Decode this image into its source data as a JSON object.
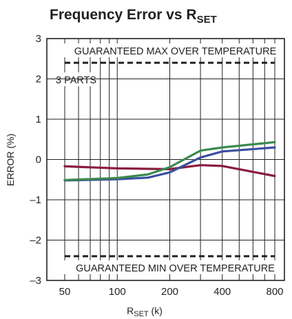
{
  "chart_data": {
    "type": "line",
    "title": "Frequency Error vs R",
    "title_subscript": "SET",
    "xlabel": "R",
    "xlabel_subscript": "SET",
    "xlabel_suffix": " (k)",
    "ylabel": "ERROR (%)",
    "x_scale": "log",
    "xlim": [
      50,
      800
    ],
    "ylim": [
      -3,
      3
    ],
    "x_ticks": [
      {
        "value": 50,
        "label": "50"
      },
      {
        "value": 100,
        "label": "100"
      },
      {
        "value": 200,
        "label": "200"
      },
      {
        "value": 400,
        "label": "400"
      },
      {
        "value": 800,
        "label": "800"
      }
    ],
    "y_ticks": [
      {
        "value": 3,
        "label": "3"
      },
      {
        "value": 2,
        "label": "2"
      },
      {
        "value": 1,
        "label": "1"
      },
      {
        "value": 0,
        "label": "0"
      },
      {
        "value": -1,
        "label": "–1"
      },
      {
        "value": -2,
        "label": "–2"
      },
      {
        "value": -3,
        "label": "–3"
      }
    ],
    "grid_x": [
      50,
      60,
      70,
      80,
      90,
      100,
      200,
      300,
      400,
      500,
      600,
      700,
      800
    ],
    "grid": true,
    "series": [
      {
        "color": "#8b1a3e",
        "x": [
          50,
          100,
          200,
          300,
          400,
          800
        ],
        "y": [
          -0.17,
          -0.22,
          -0.24,
          -0.14,
          -0.16,
          -0.41
        ]
      },
      {
        "color": "#3a4fa0",
        "x": [
          50,
          100,
          150,
          200,
          300,
          400,
          800
        ],
        "y": [
          -0.52,
          -0.49,
          -0.45,
          -0.32,
          0.05,
          0.2,
          0.3
        ]
      },
      {
        "color": "#3a8a4e",
        "x": [
          50,
          100,
          150,
          200,
          300,
          400,
          800
        ],
        "y": [
          -0.51,
          -0.46,
          -0.37,
          -0.19,
          0.22,
          0.3,
          0.43
        ]
      }
    ],
    "limits": {
      "max": {
        "value": 2.4,
        "label": "GUARANTEED MAX OVER TEMPERATURE"
      },
      "min": {
        "value": -2.4,
        "label": "GUARANTEED MIN OVER TEMPERATURE"
      }
    },
    "annotation": "3 PARTS"
  }
}
